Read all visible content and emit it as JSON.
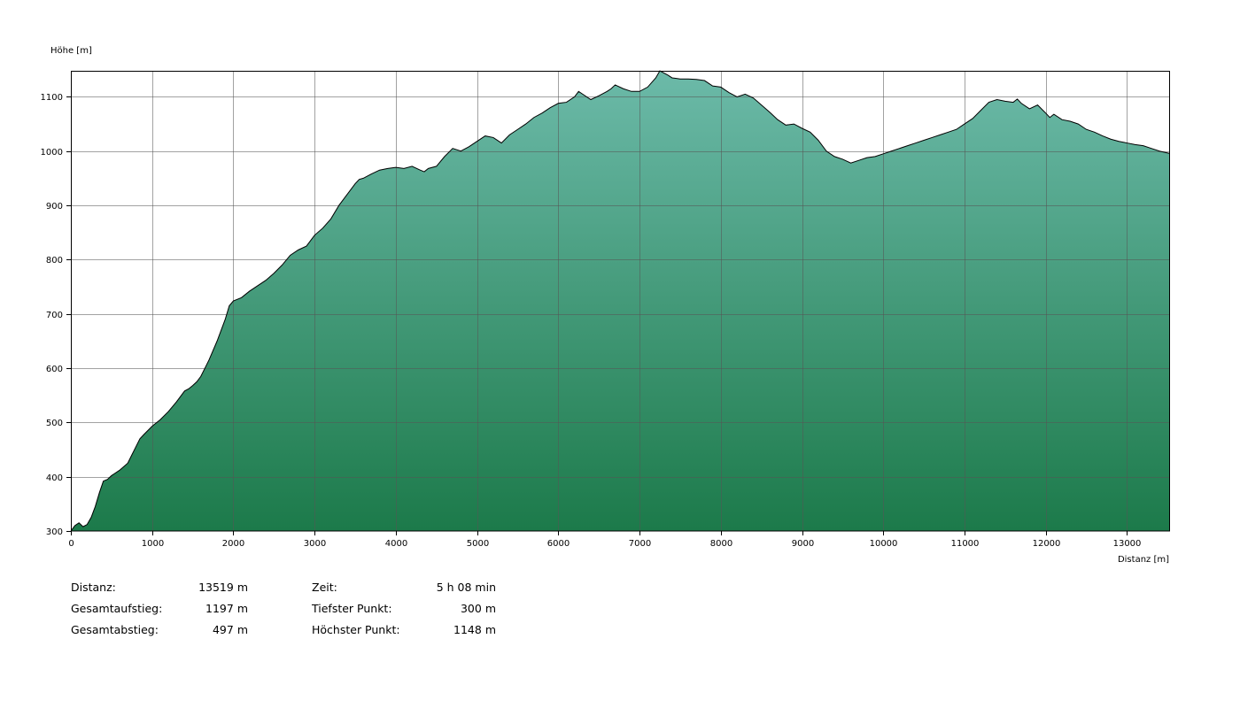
{
  "chart_data": {
    "type": "area",
    "ylabel": "Höhe [m]",
    "xlabel": "Distanz [m]",
    "xlim": [
      0,
      13519
    ],
    "ylim": [
      300,
      1148
    ],
    "x_ticks": [
      0,
      1000,
      2000,
      3000,
      4000,
      5000,
      6000,
      7000,
      8000,
      9000,
      10000,
      11000,
      12000,
      13000
    ],
    "y_ticks": [
      300,
      400,
      500,
      600,
      700,
      800,
      900,
      1000,
      1100
    ],
    "grid": true,
    "fill_top_color": "#6cbaa9",
    "fill_bottom_color": "#1c7a4a",
    "line_color": "#000000",
    "x": [
      0,
      50,
      100,
      150,
      200,
      250,
      300,
      350,
      400,
      450,
      500,
      600,
      700,
      750,
      800,
      850,
      900,
      1000,
      1100,
      1200,
      1300,
      1400,
      1450,
      1500,
      1550,
      1600,
      1650,
      1700,
      1800,
      1900,
      1950,
      2000,
      2100,
      2200,
      2300,
      2400,
      2500,
      2600,
      2700,
      2800,
      2900,
      3000,
      3100,
      3200,
      3300,
      3400,
      3500,
      3550,
      3600,
      3700,
      3800,
      3900,
      4000,
      4100,
      4200,
      4300,
      4350,
      4400,
      4500,
      4600,
      4700,
      4800,
      4900,
      5000,
      5100,
      5200,
      5300,
      5400,
      5500,
      5600,
      5700,
      5800,
      5900,
      6000,
      6100,
      6200,
      6250,
      6300,
      6400,
      6500,
      6600,
      6650,
      6700,
      6800,
      6900,
      7000,
      7100,
      7200,
      7250,
      7350,
      7400,
      7500,
      7600,
      7700,
      7800,
      7900,
      8000,
      8100,
      8200,
      8300,
      8400,
      8500,
      8600,
      8700,
      8800,
      8900,
      9000,
      9100,
      9200,
      9300,
      9400,
      9500,
      9600,
      9700,
      9800,
      9900,
      10000,
      10100,
      10200,
      10300,
      10400,
      10500,
      10600,
      10700,
      10800,
      10900,
      11000,
      11100,
      11200,
      11300,
      11400,
      11500,
      11600,
      11650,
      11700,
      11800,
      11900,
      12000,
      12050,
      12100,
      12200,
      12300,
      12400,
      12500,
      12600,
      12700,
      12800,
      12900,
      13000,
      13100,
      13200,
      13300,
      13400,
      13519
    ],
    "y": [
      300,
      310,
      315,
      308,
      312,
      325,
      345,
      370,
      392,
      395,
      402,
      412,
      425,
      440,
      455,
      470,
      478,
      493,
      505,
      520,
      538,
      558,
      562,
      568,
      575,
      585,
      600,
      615,
      650,
      690,
      715,
      724,
      730,
      742,
      752,
      762,
      775,
      790,
      808,
      818,
      825,
      845,
      858,
      875,
      900,
      920,
      940,
      948,
      950,
      958,
      965,
      968,
      970,
      968,
      972,
      965,
      962,
      968,
      972,
      990,
      1005,
      1000,
      1008,
      1018,
      1028,
      1025,
      1015,
      1030,
      1040,
      1050,
      1062,
      1070,
      1080,
      1088,
      1090,
      1100,
      1110,
      1105,
      1095,
      1102,
      1110,
      1115,
      1122,
      1115,
      1110,
      1110,
      1118,
      1135,
      1148,
      1140,
      1135,
      1133,
      1133,
      1132,
      1130,
      1120,
      1118,
      1108,
      1100,
      1105,
      1098,
      1085,
      1072,
      1058,
      1048,
      1050,
      1042,
      1035,
      1020,
      1000,
      990,
      985,
      978,
      983,
      988,
      990,
      995,
      1000,
      1005,
      1010,
      1015,
      1020,
      1025,
      1030,
      1035,
      1040,
      1050,
      1060,
      1075,
      1090,
      1095,
      1092,
      1090,
      1096,
      1088,
      1078,
      1085,
      1070,
      1062,
      1068,
      1058,
      1055,
      1050,
      1040,
      1035,
      1028,
      1022,
      1018,
      1015,
      1012,
      1010,
      1005,
      1000,
      996
    ]
  },
  "stats": {
    "distance_label": "Distanz:",
    "distance_value": "13519 m",
    "ascent_label": "Gesamtaufstieg:",
    "ascent_value": "1197 m",
    "descent_label": "Gesamtabstieg:",
    "descent_value": "497 m",
    "time_label": "Zeit:",
    "time_value": "5 h 08 min",
    "lowest_label": "Tiefster Punkt:",
    "lowest_value": "300 m",
    "highest_label": "Höchster Punkt:",
    "highest_value": "1148 m"
  }
}
